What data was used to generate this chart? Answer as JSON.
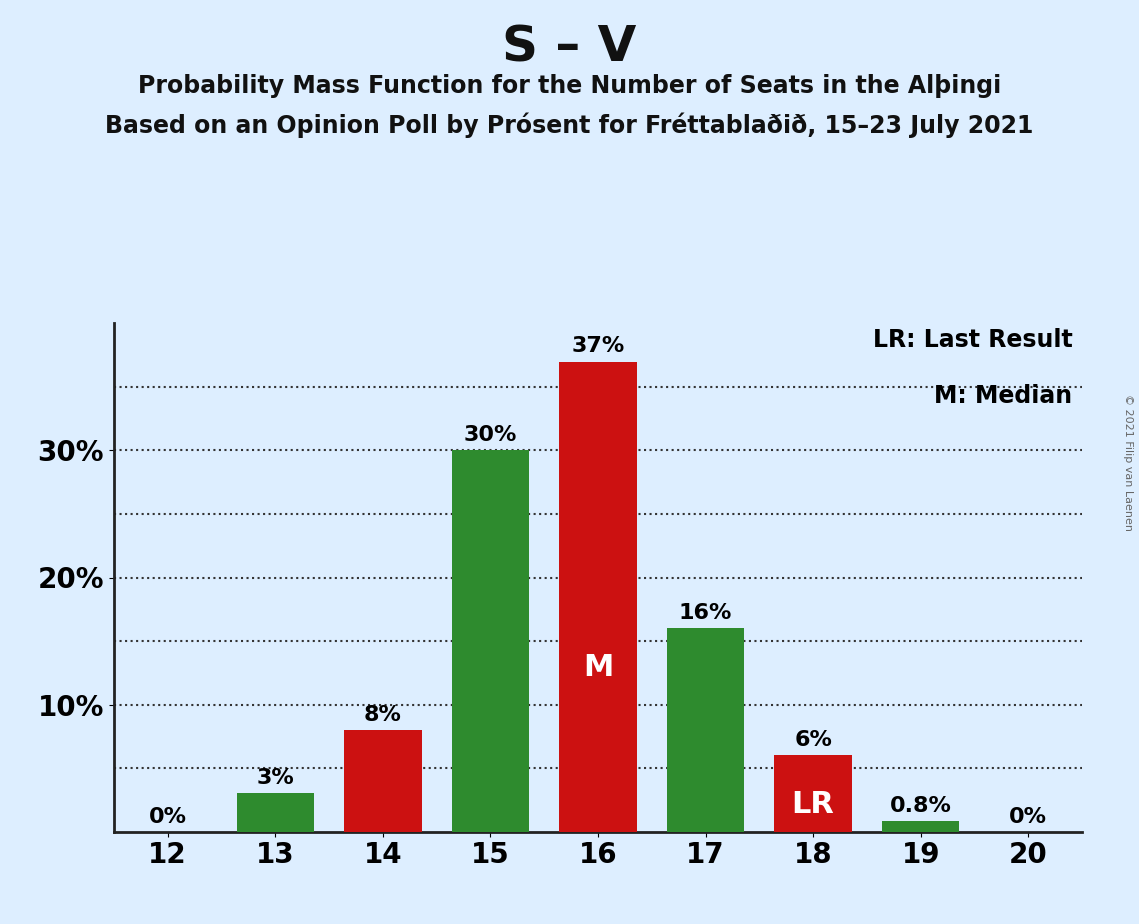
{
  "title": "S – V",
  "subtitle1": "Probability Mass Function for the Number of Seats in the Alþingi",
  "subtitle2": "Based on an Opinion Poll by Prósent for Fréttablaðið, 15–23 July 2021",
  "copyright": "© 2021 Filip van Laenen",
  "seats": [
    12,
    13,
    14,
    15,
    16,
    17,
    18,
    19,
    20
  ],
  "values": [
    0.0,
    3.0,
    8.0,
    30.0,
    37.0,
    16.0,
    6.0,
    0.8,
    0.0
  ],
  "colors": [
    "#2e8b2e",
    "#2e8b2e",
    "#cc1111",
    "#2e8b2e",
    "#cc1111",
    "#2e8b2e",
    "#cc1111",
    "#2e8b2e",
    "#2e8b2e"
  ],
  "labels": [
    "0%",
    "3%",
    "8%",
    "30%",
    "37%",
    "16%",
    "6%",
    "0.8%",
    "0%"
  ],
  "special_labels": {
    "16": "M",
    "18": "LR"
  },
  "background_color": "#ddeeff",
  "grid_color": "#333333",
  "ylim": [
    0,
    40
  ],
  "grid_ticks": [
    5,
    10,
    15,
    20,
    25,
    30,
    35
  ],
  "ytick_positions": [
    10,
    20,
    30
  ],
  "ytick_labels": [
    "10%",
    "20%",
    "30%"
  ],
  "legend_lr": "LR: Last Result",
  "legend_m": "M: Median",
  "title_fontsize": 36,
  "subtitle_fontsize": 17,
  "label_fontsize": 16,
  "tick_fontsize": 20,
  "legend_fontsize": 17,
  "special_label_fontsize": 22
}
